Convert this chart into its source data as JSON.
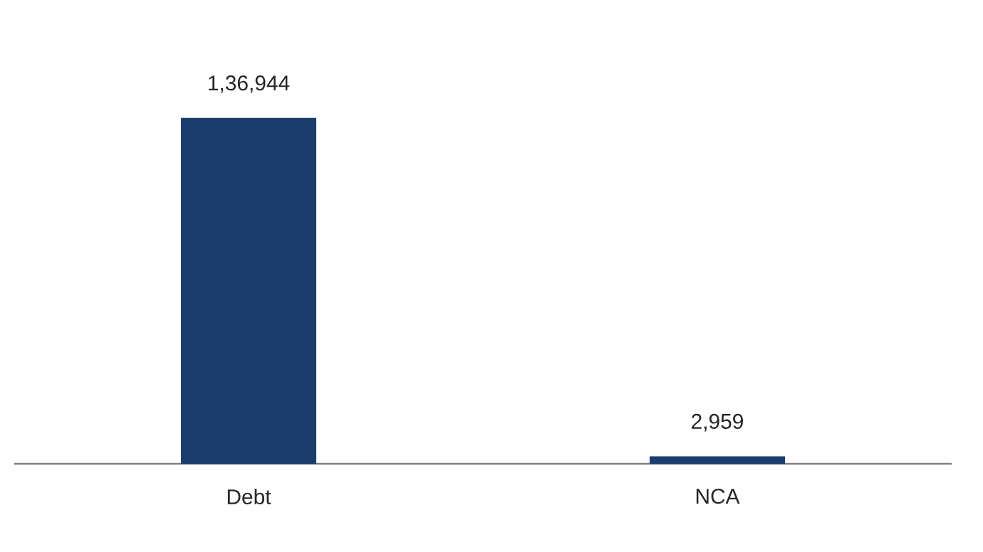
{
  "chart_data": {
    "type": "bar",
    "categories": [
      "Debt",
      "NCA"
    ],
    "values": [
      136944,
      2959
    ],
    "color": "#1a3d6e",
    "value_labels": [
      "1,36,944",
      "2,959"
    ]
  }
}
